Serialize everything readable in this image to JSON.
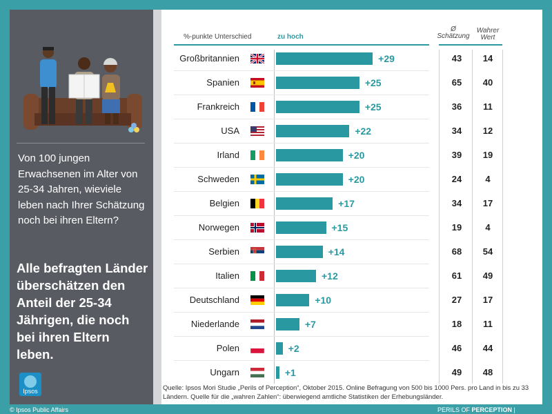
{
  "left_panel": {
    "question": "Von 100 jungen Erwachsenen im Alter von 25-34 Jahren, wieviele leben nach Ihrer Schätzung noch bei ihren Eltern?",
    "conclusion": "Alle befragten Länder überschätzen den Anteil der 25-34 Jährigen, die noch bei ihren Eltern leben.",
    "logo_text": "Ipsos"
  },
  "header": {
    "diff_label": "%-punkte Unterschied",
    "too_high_label": "zu hoch",
    "estimate_col_symbol": "Ø",
    "estimate_col_label": "Schätzung",
    "true_col_label_1": "Wahrer",
    "true_col_label_2": "Wert"
  },
  "chart_data": {
    "type": "bar",
    "orientation": "horizontal",
    "title": "%-punkte Unterschied",
    "subtitle": "zu hoch",
    "categories": [
      "Großbritannien",
      "Spanien",
      "Frankreich",
      "USA",
      "Irland",
      "Schweden",
      "Belgien",
      "Norwegen",
      "Serbien",
      "Italien",
      "Deutschland",
      "Niederlande",
      "Polen",
      "Ungarn"
    ],
    "values": [
      29,
      25,
      25,
      22,
      20,
      20,
      17,
      15,
      14,
      12,
      10,
      7,
      2,
      1
    ],
    "value_labels": [
      "+29",
      "+25",
      "+25",
      "+22",
      "+20",
      "+20",
      "+17",
      "+15",
      "+14",
      "+12",
      "+10",
      "+7",
      "+2",
      "+1"
    ],
    "xlim": [
      0,
      30
    ],
    "estimates": [
      43,
      65,
      36,
      34,
      39,
      24,
      34,
      19,
      68,
      61,
      27,
      18,
      46,
      49
    ],
    "true_values": [
      14,
      40,
      11,
      12,
      19,
      4,
      17,
      4,
      54,
      49,
      17,
      11,
      44,
      48
    ],
    "flag_icons": [
      "uk-flag-icon",
      "spain-flag-icon",
      "france-flag-icon",
      "usa-flag-icon",
      "ireland-flag-icon",
      "sweden-flag-icon",
      "belgium-flag-icon",
      "norway-flag-icon",
      "serbia-flag-icon",
      "italy-flag-icon",
      "germany-flag-icon",
      "netherlands-flag-icon",
      "poland-flag-icon",
      "hungary-flag-icon"
    ],
    "bar_color": "#2a98a1"
  },
  "source": "Quelle: Ipsos Mori Studie „Perils of Perception“, Oktober 2015. Online Befragung von 500 bis 1000 Pers. pro Land in bis zu 33 Ländern. Quelle für die „wahren Zahlen“: überwiegend amtliche Statistiken der Erhebungsländer.",
  "footer": {
    "copyright": "© Ipsos Public Affairs",
    "perils_prefix": "PERILS OF ",
    "perils_bold": "PERCEPTION",
    "perils_suffix": " |"
  }
}
